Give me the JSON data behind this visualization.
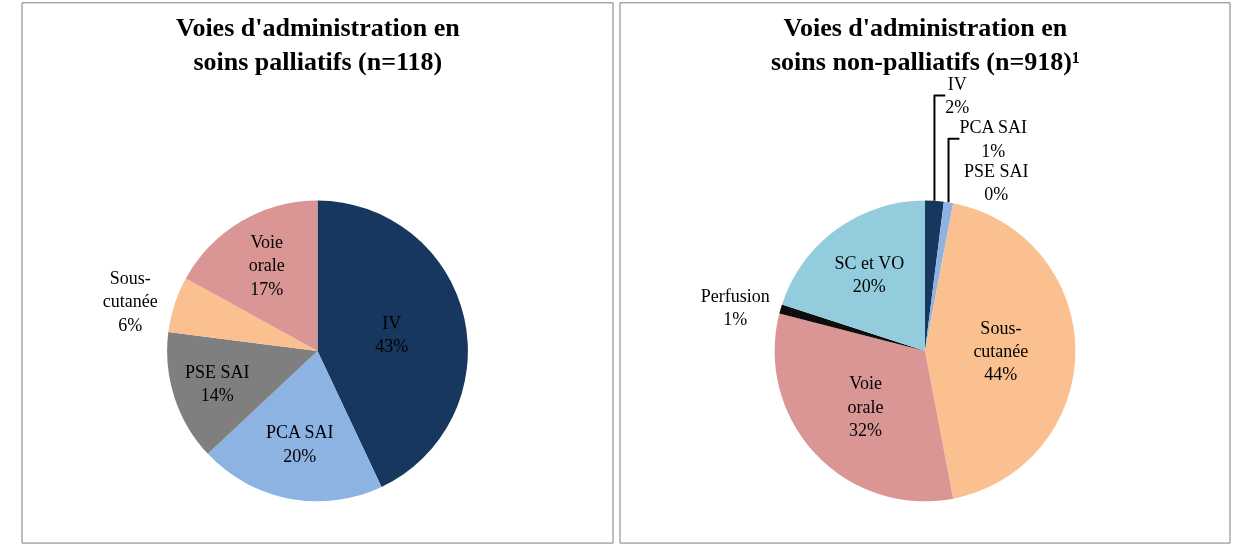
{
  "chart_data": [
    {
      "type": "pie",
      "title": "Voies d'administration en\nsoins palliatifs (n=118)",
      "categories": [
        "IV",
        "PCA SAI",
        "PSE SAI",
        "Sous-\ncutanée",
        "Voie\norale"
      ],
      "values": [
        43,
        20,
        14,
        6,
        17
      ],
      "value_labels": [
        "43%",
        "20%",
        "14%",
        "6%",
        "17%"
      ],
      "colors": [
        "#17375e",
        "#8db3e2",
        "#7f7f7f",
        "#fac090",
        "#d99694"
      ]
    },
    {
      "type": "pie",
      "title": "Voies d'administration en\nsoins non-palliatifs (n=918)¹",
      "categories": [
        "IV",
        "PCA SAI",
        "PSE SAI",
        "Sous-\ncutanée",
        "Voie\norale",
        "Perfusion",
        "SC et VO"
      ],
      "values": [
        2,
        1,
        0,
        44,
        32,
        1,
        20
      ],
      "value_labels": [
        "2%",
        "1%",
        "0%",
        "44%",
        "32%",
        "1%",
        "20%"
      ],
      "colors": [
        "#17375e",
        "#8db3e2",
        "#7f7f7f",
        "#fac090",
        "#d99694",
        "#0d0d0d",
        "#93cddd"
      ]
    }
  ]
}
